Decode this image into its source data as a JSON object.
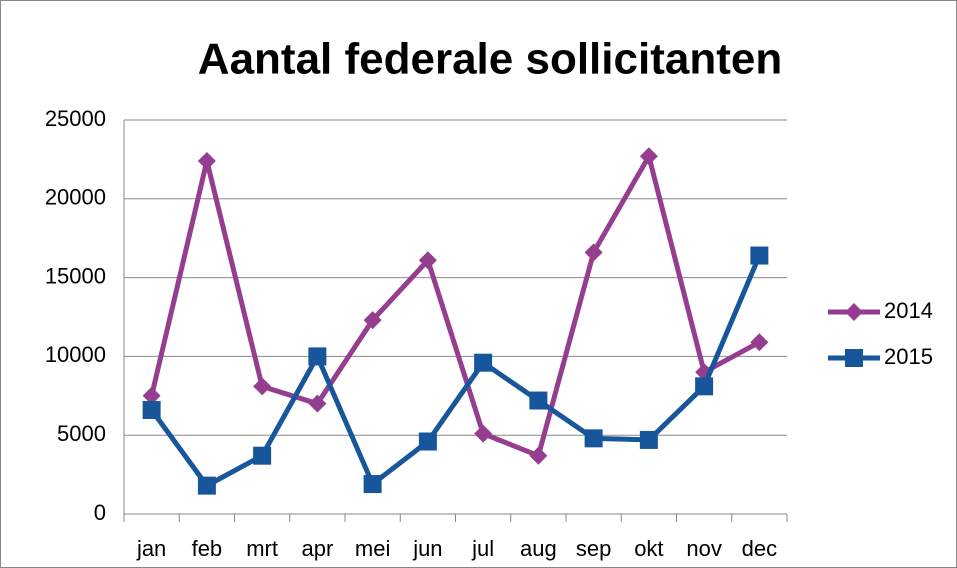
{
  "chart_data": {
    "type": "line",
    "title": "Aantal federale sollicitanten",
    "categories": [
      "jan",
      "feb",
      "mrt",
      "apr",
      "mei",
      "jun",
      "jul",
      "aug",
      "sep",
      "okt",
      "nov",
      "dec"
    ],
    "series": [
      {
        "name": "2014",
        "color": "#953e8f",
        "marker": "diamond",
        "values": [
          7500,
          22400,
          8100,
          7000,
          12300,
          16100,
          5100,
          3700,
          16600,
          22700,
          9000,
          10900
        ]
      },
      {
        "name": "2015",
        "color": "#17569b",
        "marker": "square",
        "values": [
          6600,
          1800,
          3700,
          10000,
          1900,
          4600,
          9600,
          7200,
          4800,
          4700,
          8100,
          16400
        ]
      }
    ],
    "ylim": [
      0,
      25000
    ],
    "yticks": [
      0,
      5000,
      10000,
      15000,
      20000,
      25000
    ],
    "grid": true,
    "legend": "right"
  }
}
